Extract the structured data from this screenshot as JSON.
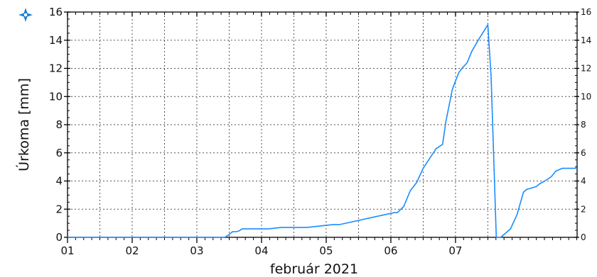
{
  "chart_data": {
    "type": "line",
    "title": "",
    "xlabel": "február 2021",
    "ylabel": "Úrkoma [mm]",
    "xlim": [
      0.0,
      7.88
    ],
    "ylim": [
      0,
      16
    ],
    "xticks": [
      {
        "value": 0.0,
        "label": "01"
      },
      {
        "value": 1.0,
        "label": "02"
      },
      {
        "value": 2.0,
        "label": "03"
      },
      {
        "value": 3.0,
        "label": "04"
      },
      {
        "value": 4.0,
        "label": "05"
      },
      {
        "value": 5.0,
        "label": "06"
      },
      {
        "value": 6.0,
        "label": "07"
      }
    ],
    "yticks": [
      0,
      2,
      4,
      6,
      8,
      10,
      12,
      14,
      16
    ],
    "grid": true,
    "legend": "none",
    "series": [
      {
        "color": "#1a8cff",
        "x": [
          0.0,
          2.43,
          2.5,
          2.55,
          2.6,
          2.65,
          2.7,
          3.0,
          3.1,
          3.3,
          3.6,
          3.7,
          3.8,
          4.1,
          4.2,
          4.25,
          5.05,
          5.1,
          5.2,
          5.3,
          5.4,
          5.5,
          5.6,
          5.7,
          5.8,
          5.85,
          5.95,
          6.05,
          6.1,
          6.18,
          6.25,
          6.35,
          6.5,
          6.55,
          6.63,
          6.7,
          6.85,
          6.95,
          7.05,
          7.1,
          7.25,
          7.3,
          7.38,
          7.48,
          7.55,
          7.65,
          7.75,
          7.88
        ],
        "y": [
          0.0,
          0.0,
          0.2,
          0.4,
          0.4,
          0.45,
          0.6,
          0.6,
          0.6,
          0.7,
          0.7,
          0.7,
          0.75,
          0.9,
          0.9,
          0.95,
          1.75,
          1.75,
          2.2,
          3.3,
          3.9,
          4.9,
          5.6,
          6.3,
          6.6,
          8.2,
          10.5,
          11.7,
          12.0,
          12.4,
          13.2,
          14.0,
          15.1,
          11.4,
          0.0,
          0.0,
          0.6,
          1.6,
          3.2,
          3.4,
          3.6,
          3.8,
          4.0,
          4.3,
          4.7,
          4.9,
          4.9,
          4.9
        ]
      }
    ]
  }
}
